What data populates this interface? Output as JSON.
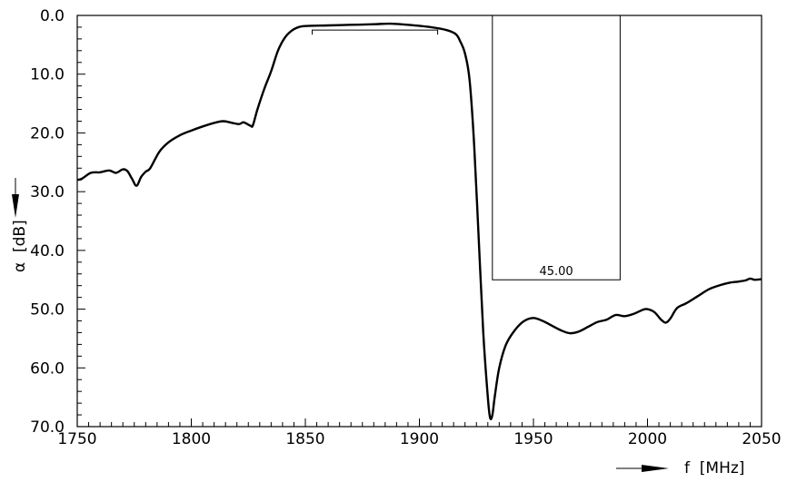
{
  "chart_data": {
    "type": "line",
    "title": "",
    "xlabel": "f  [MHz]",
    "ylabel": "α  [dB]",
    "xlim": [
      1750,
      2050
    ],
    "ylim": [
      0,
      70
    ],
    "y_inverted": true,
    "grid": false,
    "x_ticks": [
      1750,
      1800,
      1850,
      1900,
      1950,
      2000,
      2050
    ],
    "x_tick_labels": [
      "1750",
      "1800",
      "1850",
      "1900",
      "1950",
      "2000",
      "2050"
    ],
    "y_ticks": [
      0,
      10,
      20,
      30,
      40,
      50,
      60,
      70
    ],
    "y_tick_labels": [
      "0.0",
      "10.0",
      "20.0",
      "30.0",
      "40.0",
      "50.0",
      "60.0",
      "70.0"
    ],
    "series": [
      {
        "values_xy": [
          [
            1750,
            28.0
          ],
          [
            1752,
            27.8
          ],
          [
            1756,
            26.8
          ],
          [
            1760,
            26.7
          ],
          [
            1764,
            26.4
          ],
          [
            1767,
            26.8
          ],
          [
            1770,
            26.2
          ],
          [
            1772,
            26.5
          ],
          [
            1774,
            27.8
          ],
          [
            1776,
            29.0
          ],
          [
            1778,
            27.5
          ],
          [
            1780,
            26.6
          ],
          [
            1782,
            26.0
          ],
          [
            1786,
            23.2
          ],
          [
            1790,
            21.6
          ],
          [
            1795,
            20.4
          ],
          [
            1800,
            19.6
          ],
          [
            1805,
            18.9
          ],
          [
            1810,
            18.3
          ],
          [
            1814,
            18.0
          ],
          [
            1818,
            18.3
          ],
          [
            1821,
            18.5
          ],
          [
            1823,
            18.2
          ],
          [
            1826,
            18.8
          ],
          [
            1827,
            18.7
          ],
          [
            1829,
            16.0
          ],
          [
            1832,
            12.5
          ],
          [
            1835,
            9.5
          ],
          [
            1838,
            6.0
          ],
          [
            1841,
            3.8
          ],
          [
            1844,
            2.6
          ],
          [
            1847,
            2.0
          ],
          [
            1850,
            1.8
          ],
          [
            1860,
            1.7
          ],
          [
            1870,
            1.6
          ],
          [
            1880,
            1.5
          ],
          [
            1887,
            1.4
          ],
          [
            1895,
            1.6
          ],
          [
            1905,
            2.0
          ],
          [
            1912,
            2.5
          ],
          [
            1916,
            3.2
          ],
          [
            1918,
            4.5
          ],
          [
            1920,
            6.5
          ],
          [
            1922,
            11.0
          ],
          [
            1924,
            22.0
          ],
          [
            1926,
            38.0
          ],
          [
            1928,
            54.0
          ],
          [
            1930,
            65.0
          ],
          [
            1931,
            68.5
          ],
          [
            1932,
            68.0
          ],
          [
            1933,
            65.0
          ],
          [
            1935,
            60.0
          ],
          [
            1938,
            56.0
          ],
          [
            1942,
            53.5
          ],
          [
            1946,
            52.0
          ],
          [
            1950,
            51.5
          ],
          [
            1954,
            52.0
          ],
          [
            1958,
            52.8
          ],
          [
            1962,
            53.6
          ],
          [
            1966,
            54.1
          ],
          [
            1970,
            53.8
          ],
          [
            1974,
            53.0
          ],
          [
            1978,
            52.2
          ],
          [
            1982,
            51.8
          ],
          [
            1986,
            51.0
          ],
          [
            1990,
            51.2
          ],
          [
            1994,
            50.8
          ],
          [
            1998,
            50.1
          ],
          [
            2000,
            50.0
          ],
          [
            2003,
            50.5
          ],
          [
            2006,
            51.8
          ],
          [
            2008,
            52.3
          ],
          [
            2010,
            51.6
          ],
          [
            2013,
            49.8
          ],
          [
            2017,
            49.0
          ],
          [
            2022,
            47.8
          ],
          [
            2027,
            46.6
          ],
          [
            2032,
            45.9
          ],
          [
            2036,
            45.5
          ],
          [
            2040,
            45.3
          ],
          [
            2043,
            45.1
          ],
          [
            2045,
            44.8
          ],
          [
            2047,
            45.0
          ],
          [
            2050,
            44.9
          ]
        ]
      }
    ],
    "annotations": [
      {
        "type": "passband-bracket",
        "x1": 1853,
        "x2": 1908,
        "y": 2.5
      },
      {
        "type": "stopband-mask",
        "x1": 1932,
        "x2": 1988,
        "y": 45.0,
        "label": "45.00"
      }
    ]
  }
}
